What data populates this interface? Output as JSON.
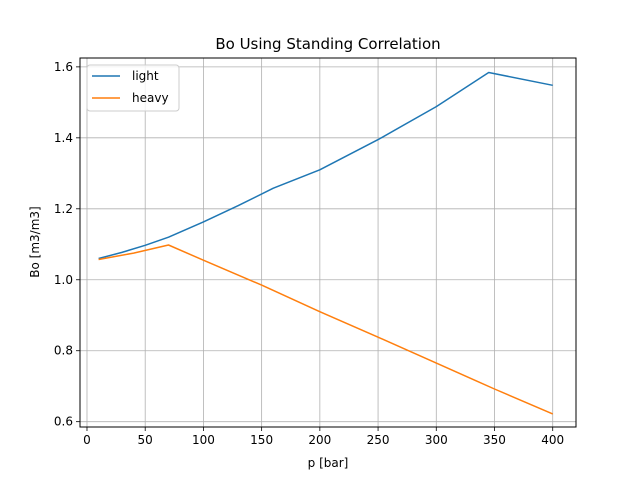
{
  "chart_data": {
    "type": "line",
    "title": "Bo Using Standing Correlation",
    "xlabel": "p [bar]",
    "ylabel": "Bo [m3/m3]",
    "xlim": [
      -6,
      420
    ],
    "ylim": [
      0.585,
      1.625
    ],
    "xticks": [
      0,
      50,
      100,
      150,
      200,
      250,
      300,
      350,
      400
    ],
    "xtick_labels": [
      "0",
      "50",
      "100",
      "150",
      "200",
      "250",
      "300",
      "350",
      "400"
    ],
    "yticks": [
      0.6,
      0.8,
      1.0,
      1.2,
      1.4,
      1.6
    ],
    "ytick_labels": [
      "0.6",
      "0.8",
      "1.0",
      "1.2",
      "1.4",
      "1.6"
    ],
    "grid": true,
    "legend_position": "upper-left",
    "series": [
      {
        "name": "light",
        "color": "#1f77b4",
        "x": [
          10,
          30,
          50,
          70,
          100,
          130,
          160,
          200,
          250,
          300,
          345,
          400
        ],
        "y": [
          1.06,
          1.077,
          1.097,
          1.12,
          1.163,
          1.209,
          1.258,
          1.31,
          1.395,
          1.488,
          1.584,
          1.548
        ]
      },
      {
        "name": "heavy",
        "color": "#ff7f0e",
        "x": [
          10,
          40,
          70,
          100,
          150,
          200,
          250,
          300,
          350,
          400
        ],
        "y": [
          1.057,
          1.075,
          1.098,
          1.055,
          0.985,
          0.91,
          0.838,
          0.765,
          0.692,
          0.622
        ]
      }
    ]
  }
}
